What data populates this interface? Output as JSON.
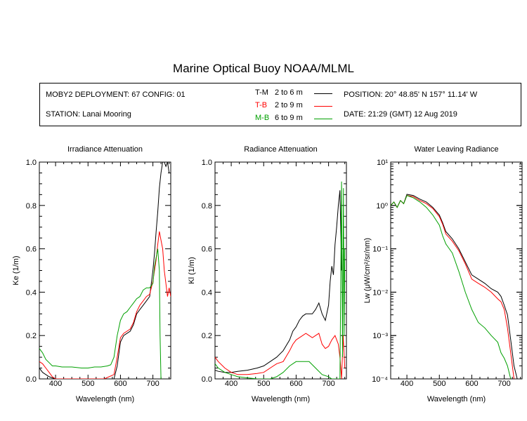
{
  "title": "Marine Optical Buoy NOAA/MLML",
  "header": {
    "deployment": "MOBY2 DEPLOYMENT: 67 CONFIG: 01",
    "station": "STATION: Lanai Mooring",
    "position": "POSITION: 20° 48.85' N   157° 11.14' W",
    "date": "DATE: 21:29 (GMT) 12 Aug 2019",
    "legend": [
      {
        "code": "T-M",
        "range": "2 to 6  m",
        "color": "#000000"
      },
      {
        "code": "T-B",
        "range": "2 to 9  m",
        "color": "#ff0000"
      },
      {
        "code": "M-B",
        "range": "6 to 9  m",
        "color": "#00a000"
      }
    ]
  },
  "chart_data": [
    {
      "type": "line",
      "title": "Irradiance Attenuation",
      "xlabel": "Wavelength (nm)",
      "ylabel": "Ke  (1/m)",
      "xlim": [
        350,
        755
      ],
      "ylim": [
        0,
        1
      ],
      "xticks": [
        400,
        500,
        600,
        700
      ],
      "yticks": [
        0.0,
        0.2,
        0.4,
        0.6,
        0.8,
        1.0
      ],
      "ytick_labels": [
        "0.0",
        "0.2",
        "0.4",
        "0.6",
        "0.8",
        "1.0"
      ],
      "series": [
        {
          "name": "T-M",
          "color": "#000000",
          "x": [
            350,
            360,
            370,
            380,
            390,
            400,
            450,
            500,
            550,
            580,
            590,
            600,
            610,
            620,
            630,
            640,
            650,
            660,
            670,
            680,
            690,
            700,
            705,
            710,
            715,
            720,
            725,
            730,
            735,
            740,
            745,
            750
          ],
          "y": [
            0.05,
            0.03,
            0.02,
            0.01,
            0.005,
            0.0,
            0.0,
            0.0,
            0.0,
            0.0,
            0.06,
            0.17,
            0.2,
            0.21,
            0.22,
            0.25,
            0.3,
            0.32,
            0.34,
            0.36,
            0.38,
            0.5,
            0.58,
            0.68,
            0.77,
            0.88,
            0.95,
            1.0,
            1.0,
            0.98,
            1.0,
            0.95
          ]
        },
        {
          "name": "T-B",
          "color": "#ff0000",
          "x": [
            350,
            360,
            370,
            380,
            390,
            400,
            450,
            500,
            550,
            580,
            590,
            600,
            610,
            620,
            630,
            640,
            650,
            660,
            670,
            680,
            690,
            700,
            710,
            715,
            720,
            725,
            730,
            735,
            740,
            745,
            750,
            755
          ],
          "y": [
            0.08,
            0.07,
            0.05,
            0.03,
            0.01,
            0.0,
            0.0,
            0.0,
            0.0,
            0.02,
            0.1,
            0.19,
            0.21,
            0.22,
            0.23,
            0.26,
            0.31,
            0.34,
            0.36,
            0.38,
            0.39,
            0.45,
            0.55,
            0.62,
            0.68,
            0.64,
            0.6,
            0.5,
            0.44,
            0.38,
            0.42,
            0.38
          ]
        },
        {
          "name": "M-B",
          "color": "#00a000",
          "x": [
            350,
            360,
            370,
            380,
            390,
            400,
            420,
            450,
            480,
            500,
            520,
            540,
            560,
            570,
            580,
            590,
            600,
            610,
            620,
            630,
            640,
            650,
            660,
            670,
            680,
            690,
            700,
            705,
            710,
            715,
            720,
            722,
            725
          ],
          "y": [
            0.14,
            0.12,
            0.09,
            0.075,
            0.06,
            0.06,
            0.055,
            0.055,
            0.05,
            0.05,
            0.055,
            0.055,
            0.06,
            0.065,
            0.1,
            0.2,
            0.27,
            0.3,
            0.31,
            0.33,
            0.35,
            0.37,
            0.38,
            0.41,
            0.42,
            0.42,
            0.44,
            0.52,
            0.56,
            0.6,
            0.5,
            0.2,
            0.0
          ]
        }
      ]
    },
    {
      "type": "line",
      "title": "Radiance Attenuation",
      "xlabel": "Wavelength (nm)",
      "ylabel": "Kl  (1/m)",
      "xlim": [
        350,
        755
      ],
      "ylim": [
        0,
        1
      ],
      "xticks": [
        400,
        500,
        600,
        700
      ],
      "yticks": [
        0.0,
        0.2,
        0.4,
        0.6,
        0.8,
        1.0
      ],
      "ytick_labels": [
        "0.0",
        "0.2",
        "0.4",
        "0.6",
        "0.8",
        "1.0"
      ],
      "series": [
        {
          "name": "T-M",
          "color": "#000000",
          "x": [
            350,
            360,
            380,
            400,
            420,
            450,
            480,
            500,
            520,
            540,
            560,
            580,
            590,
            600,
            610,
            620,
            630,
            640,
            650,
            660,
            670,
            680,
            690,
            700,
            705,
            710,
            715,
            720,
            725,
            730,
            735,
            740
          ],
          "y": [
            0.04,
            0.035,
            0.03,
            0.03,
            0.035,
            0.04,
            0.05,
            0.06,
            0.08,
            0.1,
            0.13,
            0.18,
            0.22,
            0.24,
            0.27,
            0.29,
            0.3,
            0.3,
            0.3,
            0.32,
            0.35,
            0.3,
            0.27,
            0.34,
            0.45,
            0.52,
            0.48,
            0.62,
            0.7,
            0.8,
            0.87,
            0.5
          ]
        },
        {
          "name": "T-B",
          "color": "#ff0000",
          "x": [
            350,
            360,
            380,
            400,
            420,
            450,
            480,
            500,
            520,
            540,
            560,
            580,
            590,
            600,
            610,
            620,
            630,
            640,
            650,
            660,
            670,
            680,
            690,
            700,
            710,
            720,
            730,
            735,
            740,
            745,
            750
          ],
          "y": [
            0.1,
            0.08,
            0.05,
            0.03,
            0.02,
            0.02,
            0.025,
            0.03,
            0.05,
            0.07,
            0.08,
            0.13,
            0.16,
            0.18,
            0.19,
            0.2,
            0.21,
            0.2,
            0.19,
            0.2,
            0.21,
            0.16,
            0.14,
            0.15,
            0.18,
            0.2,
            0.16,
            0.1,
            0.0,
            0.2,
            0.05
          ]
        },
        {
          "name": "M-B",
          "color": "#00a000",
          "x": [
            350,
            360,
            380,
            400,
            420,
            450,
            480,
            500,
            520,
            540,
            560,
            580,
            600,
            620,
            640,
            660,
            680,
            700,
            710,
            720,
            730,
            735,
            740,
            743,
            746,
            748,
            750
          ],
          "y": [
            0.07,
            0.05,
            0.03,
            0.02,
            0.01,
            0.005,
            0.0,
            0.0,
            0.0,
            0.01,
            0.03,
            0.06,
            0.08,
            0.08,
            0.08,
            0.05,
            0.02,
            0.01,
            0.0,
            0.0,
            0.0,
            0.0,
            0.91,
            0.1,
            0.88,
            0.2,
            0.6
          ]
        }
      ]
    },
    {
      "type": "line",
      "title": "Water Leaving Radiance",
      "xlabel": "Wavelength (nm)",
      "ylabel": "Lw  (μW/cm²/sr/nm)",
      "scale": "log",
      "xlim": [
        350,
        755
      ],
      "ylim": [
        0.0001,
        10
      ],
      "xticks": [
        400,
        500,
        600,
        700
      ],
      "yticks": [
        0.0001,
        0.001,
        0.01,
        0.1,
        1,
        10
      ],
      "ytick_labels": [
        "10⁻⁴",
        "10⁻³",
        "10⁻²",
        "10⁻¹",
        "10⁰",
        "10¹"
      ],
      "series": [
        {
          "name": "T-M",
          "color": "#000000",
          "x": [
            350,
            360,
            370,
            380,
            390,
            400,
            420,
            440,
            460,
            480,
            500,
            510,
            520,
            540,
            560,
            580,
            600,
            620,
            640,
            660,
            680,
            690,
            700,
            710,
            720,
            730,
            740
          ],
          "y": [
            1.0,
            1.2,
            0.9,
            1.3,
            1.1,
            1.8,
            1.7,
            1.4,
            1.2,
            0.9,
            0.6,
            0.4,
            0.25,
            0.17,
            0.1,
            0.05,
            0.025,
            0.02,
            0.016,
            0.012,
            0.01,
            0.008,
            0.005,
            0.003,
            0.0008,
            0.0002,
            0.0001
          ]
        },
        {
          "name": "T-B",
          "color": "#ff0000",
          "x": [
            350,
            360,
            370,
            380,
            390,
            400,
            420,
            440,
            460,
            480,
            500,
            510,
            520,
            540,
            560,
            580,
            600,
            620,
            640,
            660,
            680,
            690,
            700,
            710,
            720,
            730
          ],
          "y": [
            1.0,
            1.2,
            0.9,
            1.3,
            1.1,
            1.7,
            1.6,
            1.3,
            1.1,
            0.85,
            0.55,
            0.37,
            0.22,
            0.15,
            0.09,
            0.045,
            0.02,
            0.016,
            0.013,
            0.01,
            0.007,
            0.006,
            0.004,
            0.0015,
            0.0004,
            0.0001
          ]
        },
        {
          "name": "M-B",
          "color": "#00a000",
          "x": [
            350,
            360,
            370,
            380,
            390,
            400,
            420,
            440,
            460,
            480,
            500,
            510,
            520,
            540,
            560,
            580,
            600,
            620,
            640,
            660,
            680,
            690,
            700,
            710,
            720
          ],
          "y": [
            1.0,
            1.2,
            0.9,
            1.3,
            1.1,
            1.7,
            1.5,
            1.2,
            0.9,
            0.6,
            0.35,
            0.2,
            0.13,
            0.08,
            0.03,
            0.01,
            0.004,
            0.002,
            0.0015,
            0.001,
            0.0007,
            0.0004,
            0.0003,
            0.0002,
            0.0001
          ]
        }
      ]
    }
  ]
}
